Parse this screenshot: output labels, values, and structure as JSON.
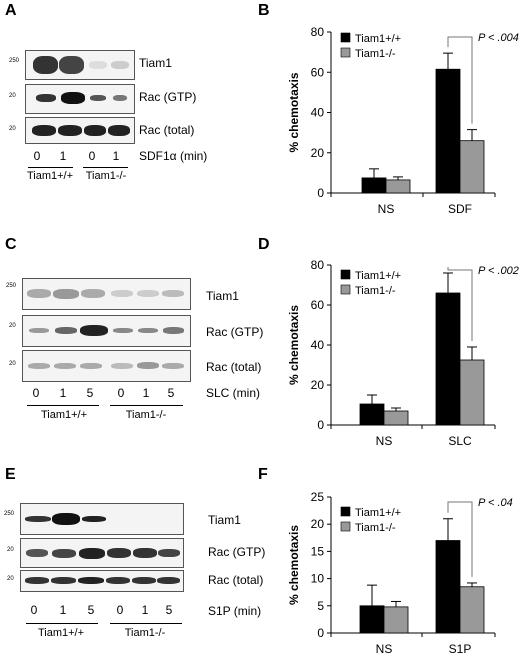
{
  "panels": {
    "A": {
      "letter": "A",
      "markers": [
        "250",
        "20",
        "20"
      ],
      "rows": [
        "Tiam1",
        "Rac (GTP)",
        "Rac (total)"
      ],
      "lanes": [
        "0",
        "1",
        "0",
        "1"
      ],
      "treatment": "SDF1α (min)",
      "groups": [
        "Tiam1+/+",
        "Tiam1-/-"
      ]
    },
    "B": {
      "letter": "B"
    },
    "C": {
      "letter": "C",
      "markers": [
        "250",
        "20",
        "20"
      ],
      "rows": [
        "Tiam1",
        "Rac (GTP)",
        "Rac (total)"
      ],
      "lanes": [
        "0",
        "1",
        "5",
        "0",
        "1",
        "5"
      ],
      "treatment": "SLC (min)",
      "groups": [
        "Tiam1+/+",
        "Tiam1-/-"
      ]
    },
    "D": {
      "letter": "D"
    },
    "E": {
      "letter": "E",
      "markers": [
        "250",
        "20",
        "20"
      ],
      "rows": [
        "Tiam1",
        "Rac (GTP)",
        "Rac (total)"
      ],
      "lanes": [
        "0",
        "1",
        "5",
        "0",
        "1",
        "5"
      ],
      "treatment": "S1P (min)",
      "groups": [
        "Tiam1+/+",
        "Tiam1-/-"
      ]
    },
    "F": {
      "letter": "F"
    }
  },
  "colors": {
    "wild_type": "#000000",
    "knockout": "#999999"
  },
  "chart_data": [
    {
      "panel": "B",
      "type": "bar",
      "categories": [
        "NS",
        "SDF"
      ],
      "series": [
        {
          "name": "Tiam1+/+",
          "values": [
            7.5,
            61.5
          ],
          "errors": [
            4.5,
            8
          ]
        },
        {
          "name": "Tiam1-/-",
          "values": [
            6.5,
            26
          ],
          "errors": [
            1.5,
            5.5
          ]
        }
      ],
      "ylabel": "% chemotaxis",
      "ylim": [
        0,
        80
      ],
      "yticks": [
        "0",
        "20",
        "40",
        "60",
        "80"
      ],
      "legend": "top-left",
      "annotation": "P < .004",
      "grid": false
    },
    {
      "panel": "D",
      "type": "bar",
      "categories": [
        "NS",
        "SLC"
      ],
      "series": [
        {
          "name": "Tiam1+/+",
          "values": [
            10.5,
            66
          ],
          "errors": [
            4.5,
            10
          ]
        },
        {
          "name": "Tiam1-/-",
          "values": [
            7,
            32.5
          ],
          "errors": [
            1.5,
            6.5
          ]
        }
      ],
      "ylabel": "% chemotaxis",
      "ylim": [
        0,
        80
      ],
      "yticks": [
        "0",
        "20",
        "40",
        "60",
        "80"
      ],
      "legend": "top-left",
      "annotation": "P < .002",
      "grid": false
    },
    {
      "panel": "F",
      "type": "bar",
      "categories": [
        "NS",
        "S1P"
      ],
      "series": [
        {
          "name": "Tiam1+/+",
          "values": [
            5,
            17
          ],
          "errors": [
            3.8,
            4
          ]
        },
        {
          "name": "Tiam1-/-",
          "values": [
            4.8,
            8.5
          ],
          "errors": [
            1,
            0.7
          ]
        }
      ],
      "ylabel": "% chemotaxis",
      "ylim": [
        0,
        25
      ],
      "yticks": [
        "0",
        "5",
        "10",
        "15",
        "20",
        "25"
      ],
      "legend": "top-left",
      "annotation": "P < .04",
      "grid": false
    }
  ]
}
